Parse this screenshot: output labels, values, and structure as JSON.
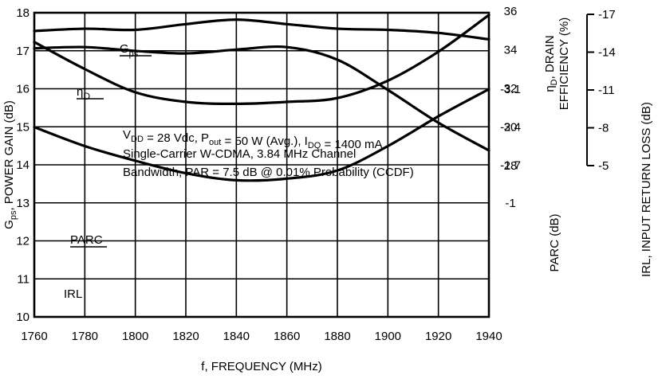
{
  "chart_data": {
    "type": "line",
    "x_axis": {
      "label": "f, FREQUENCY (MHz)",
      "ticks": [
        1760,
        1780,
        1800,
        1820,
        1840,
        1860,
        1880,
        1900,
        1920,
        1940
      ],
      "range": [
        1760,
        1940
      ]
    },
    "y_left": {
      "label_main": "G",
      "label_sub": "ps",
      "label_rest": ", POWER GAIN (dB)",
      "ticks": [
        10,
        11,
        12,
        13,
        14,
        15,
        16,
        17,
        18
      ],
      "range": [
        10,
        18
      ]
    },
    "y_right_efficiency": {
      "label_line1_main": "η",
      "label_line1_sub": "D",
      "label_line1_rest": ", DRAIN",
      "label_line2": "EFFICIENCY (%)",
      "ticks": [
        28,
        30,
        32,
        34,
        36
      ],
      "tick_labels": [
        "28",
        "30",
        "32",
        "34",
        "36"
      ]
    },
    "y_right_parc": {
      "label": "PARC (dB)",
      "ticks": [
        -1,
        -1.7,
        -2.4,
        -3.1
      ],
      "tick_labels": [
        "-1",
        "-1.7",
        "-2.4",
        "-3.1"
      ]
    },
    "y_far_right_irl": {
      "label": "IRL, INPUT RETURN LOSS (dB)",
      "ticks": [
        -5,
        -8,
        -11,
        -14,
        -17
      ],
      "tick_labels": [
        "-5",
        "-8",
        "-11",
        "-14",
        "-17"
      ]
    },
    "grid": true,
    "series": [
      {
        "name": "Gps",
        "label_main": "G",
        "label_sub": "ps",
        "axis": "left_gain",
        "x": [
          1760,
          1780,
          1800,
          1820,
          1840,
          1860,
          1880,
          1900,
          1920,
          1940
        ],
        "y": [
          17.52,
          17.58,
          17.55,
          17.7,
          17.82,
          17.7,
          17.58,
          17.55,
          17.47,
          17.3
        ]
      },
      {
        "name": "ηD",
        "label_main": "η",
        "label_sub": "D",
        "axis": "efficiency",
        "x": [
          1760,
          1780,
          1800,
          1820,
          1840,
          1860,
          1880,
          1900,
          1920,
          1940
        ],
        "y": [
          34.4,
          33.0,
          31.8,
          31.3,
          31.2,
          31.3,
          31.5,
          32.4,
          33.9,
          35.8
        ]
      },
      {
        "name": "PARC",
        "label": "PARC",
        "axis": "parc",
        "x": [
          1760,
          1780,
          1800,
          1820,
          1840,
          1860,
          1880,
          1900,
          1920,
          1940
        ],
        "y": [
          -2.4,
          -2.05,
          -1.78,
          -1.55,
          -1.42,
          -1.45,
          -1.6,
          -2.05,
          -2.6,
          -3.1
        ]
      },
      {
        "name": "IRL",
        "label": "IRL",
        "axis": "irl",
        "x": [
          1760,
          1780,
          1800,
          1820,
          1840,
          1860,
          1880,
          1900,
          1920,
          1940
        ],
        "y": [
          -14.3,
          -14.4,
          -14.1,
          -13.9,
          -14.2,
          -14.4,
          -13.4,
          -11.0,
          -8.4,
          -6.2
        ]
      }
    ],
    "annotation": {
      "line1_parts": [
        {
          "t": "V",
          "sub": false
        },
        {
          "t": "DD",
          "sub": true
        },
        {
          "t": " = 28 Vdc, P",
          "sub": false
        },
        {
          "t": "out",
          "sub": true
        },
        {
          "t": " = 50 W (Avg.), I",
          "sub": false
        },
        {
          "t": "DQ",
          "sub": true
        },
        {
          "t": " = 1400 mA",
          "sub": false
        }
      ],
      "line2": "Single-Carrier W-CDMA, 3.84 MHz Channel",
      "line3": "Bandwidth, PAR = 7.5 dB @ 0.01% Probability (CCDF)"
    }
  }
}
